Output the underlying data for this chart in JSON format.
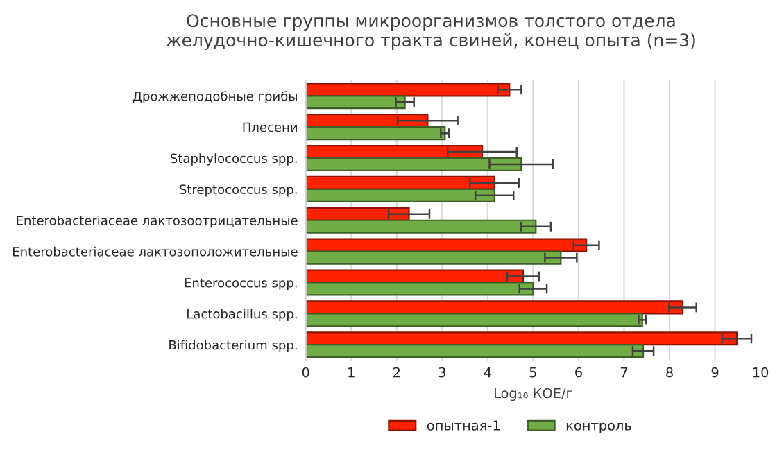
{
  "chart_data": {
    "type": "bar",
    "orientation": "horizontal",
    "title": "Основные группы микроорганизмов толстого отдела\nжелудочно-кишечного тракта свиней, конец опыта (n=3)",
    "xlabel": "Log₁₀ КОЕ/г",
    "categories": [
      "Дрожжеподобные грибы",
      "Плесени",
      "Staphylococcus spp.",
      "Streptococcus spp.",
      "Enterobacteriaceae лактозоотрицательные",
      "Enterobacteriaceae лактозоположительные",
      "Enterococcus spp.",
      "Lactobacillus spp.",
      "Bifidobacterium spp."
    ],
    "series": [
      {
        "name": "опытная-1",
        "color": "#ff2200",
        "values": [
          4.48,
          2.68,
          3.88,
          4.15,
          2.27,
          6.17,
          4.78,
          8.29,
          9.48
        ],
        "errors": [
          0.26,
          0.66,
          0.76,
          0.54,
          0.45,
          0.28,
          0.35,
          0.3,
          0.32
        ]
      },
      {
        "name": "контроль",
        "color": "#70ad47",
        "values": [
          2.18,
          3.06,
          4.74,
          4.15,
          5.06,
          5.61,
          5.0,
          7.4,
          7.42
        ],
        "errors": [
          0.2,
          0.09,
          0.7,
          0.42,
          0.33,
          0.35,
          0.3,
          0.08,
          0.23
        ]
      }
    ],
    "xlim": [
      0,
      10
    ],
    "xticks": [
      0,
      1,
      2,
      3,
      4,
      5,
      6,
      7,
      8,
      9,
      10
    ],
    "grid": "x",
    "legend": "bottom"
  }
}
